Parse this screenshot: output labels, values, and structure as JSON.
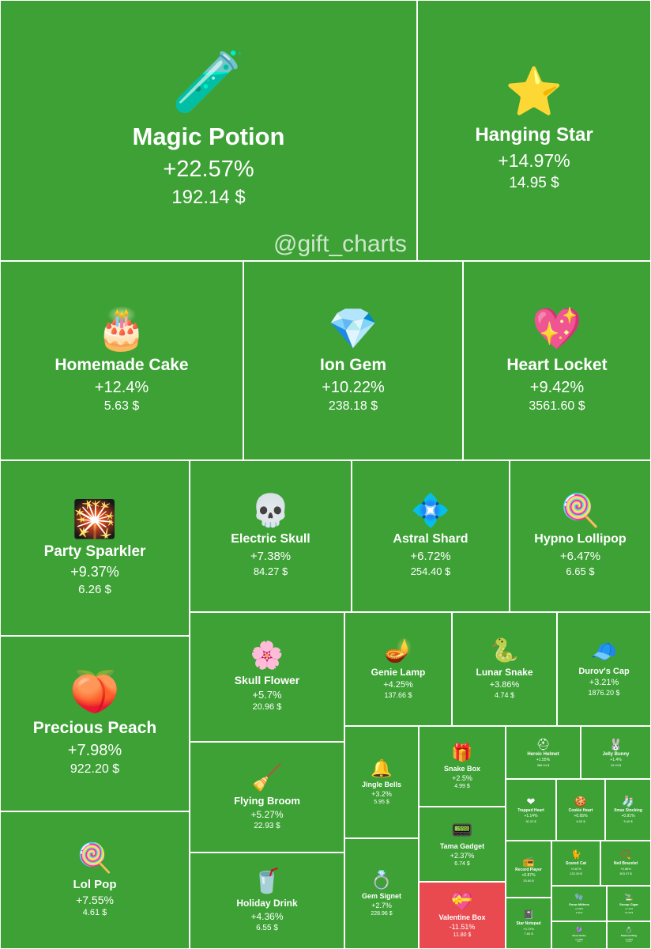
{
  "watermark": "@gift_charts",
  "colors": {
    "gain": "#3da135",
    "loss": "#e84a4f",
    "border": "#ffffff",
    "text": "#ffffff"
  },
  "chart_data": {
    "type": "heatmap",
    "items": [
      {
        "name": "Magic Potion",
        "change": "+22.57%",
        "price": "192.14 $",
        "icon": "🧪"
      },
      {
        "name": "Hanging Star",
        "change": "+14.97%",
        "price": "14.95 $",
        "icon": "⭐"
      },
      {
        "name": "Homemade Cake",
        "change": "+12.4%",
        "price": "5.63 $",
        "icon": "🎂"
      },
      {
        "name": "Ion Gem",
        "change": "+10.22%",
        "price": "238.18 $",
        "icon": "💎"
      },
      {
        "name": "Heart Locket",
        "change": "+9.42%",
        "price": "3561.60 $",
        "icon": "💖"
      },
      {
        "name": "Party Sparkler",
        "change": "+9.37%",
        "price": "6.26 $",
        "icon": "🎇"
      },
      {
        "name": "Electric Skull",
        "change": "+7.38%",
        "price": "84.27 $",
        "icon": "💀"
      },
      {
        "name": "Astral Shard",
        "change": "+6.72%",
        "price": "254.40 $",
        "icon": "💠"
      },
      {
        "name": "Hypno Lollipop",
        "change": "+6.47%",
        "price": "6.65 $",
        "icon": "🍭"
      },
      {
        "name": "Precious Peach",
        "change": "+7.98%",
        "price": "922.20 $",
        "icon": "🍑"
      },
      {
        "name": "Skull Flower",
        "change": "+5.7%",
        "price": "20.96 $",
        "icon": "🌸"
      },
      {
        "name": "Genie Lamp",
        "change": "+4.25%",
        "price": "137.66 $",
        "icon": "🪔"
      },
      {
        "name": "Lunar Snake",
        "change": "+3.86%",
        "price": "4.74 $",
        "icon": "🐍"
      },
      {
        "name": "Durov's Cap",
        "change": "+3.21%",
        "price": "1876.20 $",
        "icon": "🧢"
      },
      {
        "name": "Lol Pop",
        "change": "+7.55%",
        "price": "4.61 $",
        "icon": "🍭"
      },
      {
        "name": "Flying Broom",
        "change": "+5.27%",
        "price": "22.93 $",
        "icon": "🧹"
      },
      {
        "name": "Holiday Drink",
        "change": "+4.36%",
        "price": "6.55 $",
        "icon": "🥤"
      },
      {
        "name": "Jingle Bells",
        "change": "+3.2%",
        "price": "5.95 $",
        "icon": "🔔"
      },
      {
        "name": "Gem Signet",
        "change": "+2.7%",
        "price": "228.96 $",
        "icon": "💍"
      },
      {
        "name": "Snake Box",
        "change": "+2.5%",
        "price": "4.99 $",
        "icon": "🎁"
      },
      {
        "name": "Tama Gadget",
        "change": "+2.37%",
        "price": "6.74 $",
        "icon": "📟"
      },
      {
        "name": "Valentine Box",
        "change": "-11.51%",
        "price": "11.80 $",
        "icon": "💝"
      },
      {
        "name": "Heroic Helmet",
        "change": "+1.55%",
        "price": "366.04 $",
        "icon": "⛑"
      },
      {
        "name": "Jelly Bunny",
        "change": "+1.4%",
        "price": "10.03 $",
        "icon": "🐰"
      },
      {
        "name": "Trapped Heart",
        "change": "+1.14%",
        "price": "30.22 $",
        "icon": "❤"
      },
      {
        "name": "Cookie Heart",
        "change": "+0.95%",
        "price": "6.03 $",
        "icon": "🍪"
      },
      {
        "name": "Xmas Stocking",
        "change": "+0.91%",
        "price": "5.40 $",
        "icon": "🧦"
      },
      {
        "name": "Record Player",
        "change": "+0.87%",
        "price": "20.60 $",
        "icon": "📻"
      },
      {
        "name": "Scared Cat",
        "change": "+0.67%",
        "price": "132.30 $",
        "icon": "🐈"
      },
      {
        "name": "Neil Bracelet",
        "change": "+0.56%",
        "price": "303.37 $",
        "icon": "📿"
      },
      {
        "name": "Star Notepad",
        "change": "+0.72%",
        "price": "7.60 $",
        "icon": "📓"
      },
      {
        "name": "Snow Mittens",
        "change": "+0.46%",
        "price": "9.40 $",
        "icon": "🧤"
      },
      {
        "name": "Snoop Cigar",
        "change": "+1.11%",
        "price": "13.48 $",
        "icon": "🚬"
      },
      {
        "name": "Snow Globe",
        "change": "+0.35%",
        "price": "9.82 $",
        "icon": "🔮"
      },
      {
        "name": "Diamond Ring",
        "change": "+0.35%",
        "price": "16.16 $",
        "icon": "💍"
      }
    ]
  }
}
